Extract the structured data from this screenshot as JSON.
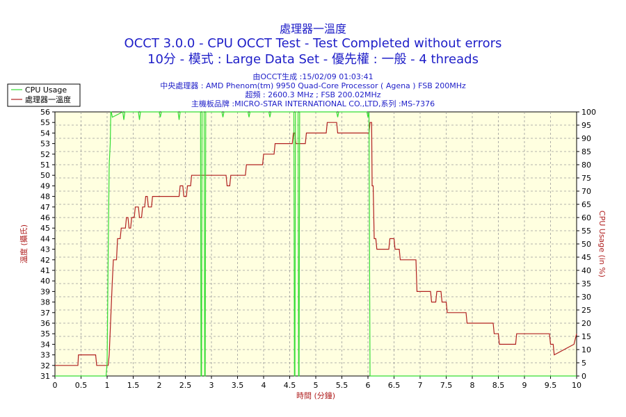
{
  "header": {
    "title": "處理器一溫度",
    "subtitle1": "OCCT 3.0.0 - CPU OCCT Test - Test Completed without errors",
    "subtitle2": "10分 - 模式 : Large Data Set - 優先權 : 一般 - 4 threads",
    "info": [
      "由OCCT生成 :15/02/09 01:03:41",
      "中央處理器 : AMD Phenom(tm) 9950 Quad-Core Processor ( Agena ) FSB 200MHz",
      "超頻 : 2600.3 MHz ; FSB 200.02MHz",
      "主機板品牌 :MICRO-STAR INTERNATIONAL CO.,LTD,系列 :MS-7376"
    ]
  },
  "colors": {
    "plot_bg": "#ffffe0",
    "grid": "#9a9a9a",
    "temperature": "#b02020",
    "cpu_usage": "#33dd33",
    "title": "#1e1ec8"
  },
  "chart_data": {
    "type": "line",
    "title": "處理器一溫度",
    "xlabel": "時間 (分鐘)",
    "ylabel": "溫度 (攝氏)",
    "y2label": "CPU Usage (in %)",
    "xlim": [
      0,
      10
    ],
    "ylim": [
      31,
      56
    ],
    "y2lim": [
      0,
      100
    ],
    "x_ticks": [
      "0",
      "0.5",
      "1",
      "1.5",
      "2",
      "2.5",
      "3",
      "3.5",
      "4",
      "4.5",
      "5",
      "5.5",
      "6",
      "6.5",
      "7",
      "7.5",
      "8",
      "8.5",
      "9",
      "9.5",
      "10"
    ],
    "y_ticks": [
      "31",
      "32",
      "33",
      "34",
      "35",
      "36",
      "37",
      "38",
      "39",
      "40",
      "41",
      "42",
      "43",
      "44",
      "45",
      "46",
      "47",
      "48",
      "49",
      "50",
      "51",
      "52",
      "53",
      "54",
      "55",
      "56"
    ],
    "y2_ticks": [
      "0",
      "5",
      "10",
      "15",
      "20",
      "25",
      "30",
      "35",
      "40",
      "45",
      "50",
      "55",
      "60",
      "65",
      "70",
      "75",
      "80",
      "85",
      "90",
      "95",
      "100"
    ],
    "grid": true,
    "legend_position": "top-left",
    "legend": [
      "CPU Usage",
      "處理器一溫度"
    ],
    "series": [
      {
        "name": "處理器一溫度",
        "axis": "left",
        "x": [
          0,
          0.44,
          0.45,
          0.78,
          0.8,
          1.02,
          1.04,
          1.1,
          1.12,
          1.18,
          1.2,
          1.25,
          1.27,
          1.35,
          1.37,
          1.4,
          1.42,
          1.45,
          1.47,
          1.52,
          1.54,
          1.6,
          1.62,
          1.66,
          1.68,
          1.72,
          1.74,
          1.77,
          1.79,
          1.85,
          1.87,
          1.92,
          1.94,
          2.02,
          2.04,
          2.38,
          2.4,
          2.45,
          2.47,
          2.52,
          2.54,
          2.6,
          2.62,
          2.8,
          2.82,
          3.28,
          3.3,
          3.35,
          3.37,
          3.65,
          3.67,
          3.98,
          4.0,
          4.2,
          4.22,
          4.55,
          4.57,
          4.6,
          4.62,
          4.8,
          4.82,
          4.88,
          4.9,
          5.2,
          5.22,
          5.4,
          5.42,
          6.02,
          6.04,
          6.07,
          6.08,
          6.1,
          6.12,
          6.15,
          6.17,
          6.2,
          6.22,
          6.4,
          6.42,
          6.5,
          6.52,
          6.6,
          6.62,
          6.92,
          6.94,
          7.2,
          7.22,
          7.3,
          7.32,
          7.4,
          7.42,
          7.5,
          7.52,
          7.88,
          7.9,
          8.4,
          8.42,
          8.5,
          8.52,
          8.83,
          8.85,
          9.48,
          9.5,
          9.55,
          9.57,
          9.95,
          10.0
        ],
        "values": [
          32,
          32,
          33,
          33,
          32,
          32,
          33,
          40,
          42,
          42,
          44,
          44,
          45,
          45,
          46,
          46,
          45,
          45,
          46,
          46,
          47,
          47,
          46,
          46,
          47,
          47,
          48,
          48,
          47,
          47,
          48,
          48,
          48,
          48,
          48,
          48,
          49,
          49,
          48,
          48,
          49,
          49,
          50,
          50,
          50,
          50,
          49,
          49,
          50,
          50,
          51,
          51,
          52,
          52,
          53,
          53,
          54,
          54,
          53,
          53,
          54,
          54,
          54,
          54,
          55,
          55,
          54,
          54,
          55,
          55,
          49,
          49,
          44,
          44,
          43,
          43,
          43,
          43,
          44,
          44,
          43,
          43,
          42,
          42,
          39,
          39,
          38,
          38,
          39,
          39,
          38,
          38,
          37,
          37,
          36,
          36,
          35,
          35,
          34,
          34,
          35,
          35,
          34,
          34,
          33,
          34,
          35
        ]
      },
      {
        "name": "CPU Usage",
        "axis": "right",
        "x": [
          0,
          0.98,
          1.0,
          1.02,
          1.04,
          1.06,
          1.07,
          1.08,
          1.1,
          1.3,
          1.32,
          1.34,
          1.6,
          1.62,
          1.64,
          2.0,
          2.02,
          2.04,
          2.36,
          2.38,
          2.4,
          2.79,
          2.8,
          2.81,
          2.82,
          2.86,
          2.87,
          2.88,
          2.89,
          3.2,
          3.22,
          3.24,
          3.7,
          3.72,
          3.74,
          4.1,
          4.12,
          4.14,
          4.58,
          4.59,
          4.6,
          4.61,
          4.66,
          4.67,
          4.68,
          4.69,
          5.4,
          5.42,
          5.44,
          5.98,
          6.0,
          6.02,
          6.04,
          6.05,
          10.0
        ],
        "values": [
          0,
          0,
          5,
          45,
          80,
          88,
          100,
          100,
          98,
          100,
          97,
          100,
          100,
          97,
          100,
          100,
          98,
          100,
          100,
          97,
          100,
          100,
          0,
          0,
          100,
          100,
          0,
          0,
          100,
          100,
          98,
          100,
          100,
          98,
          100,
          100,
          98,
          100,
          100,
          0,
          0,
          100,
          100,
          0,
          0,
          100,
          100,
          98,
          100,
          100,
          98,
          100,
          0,
          0,
          0
        ]
      }
    ]
  }
}
